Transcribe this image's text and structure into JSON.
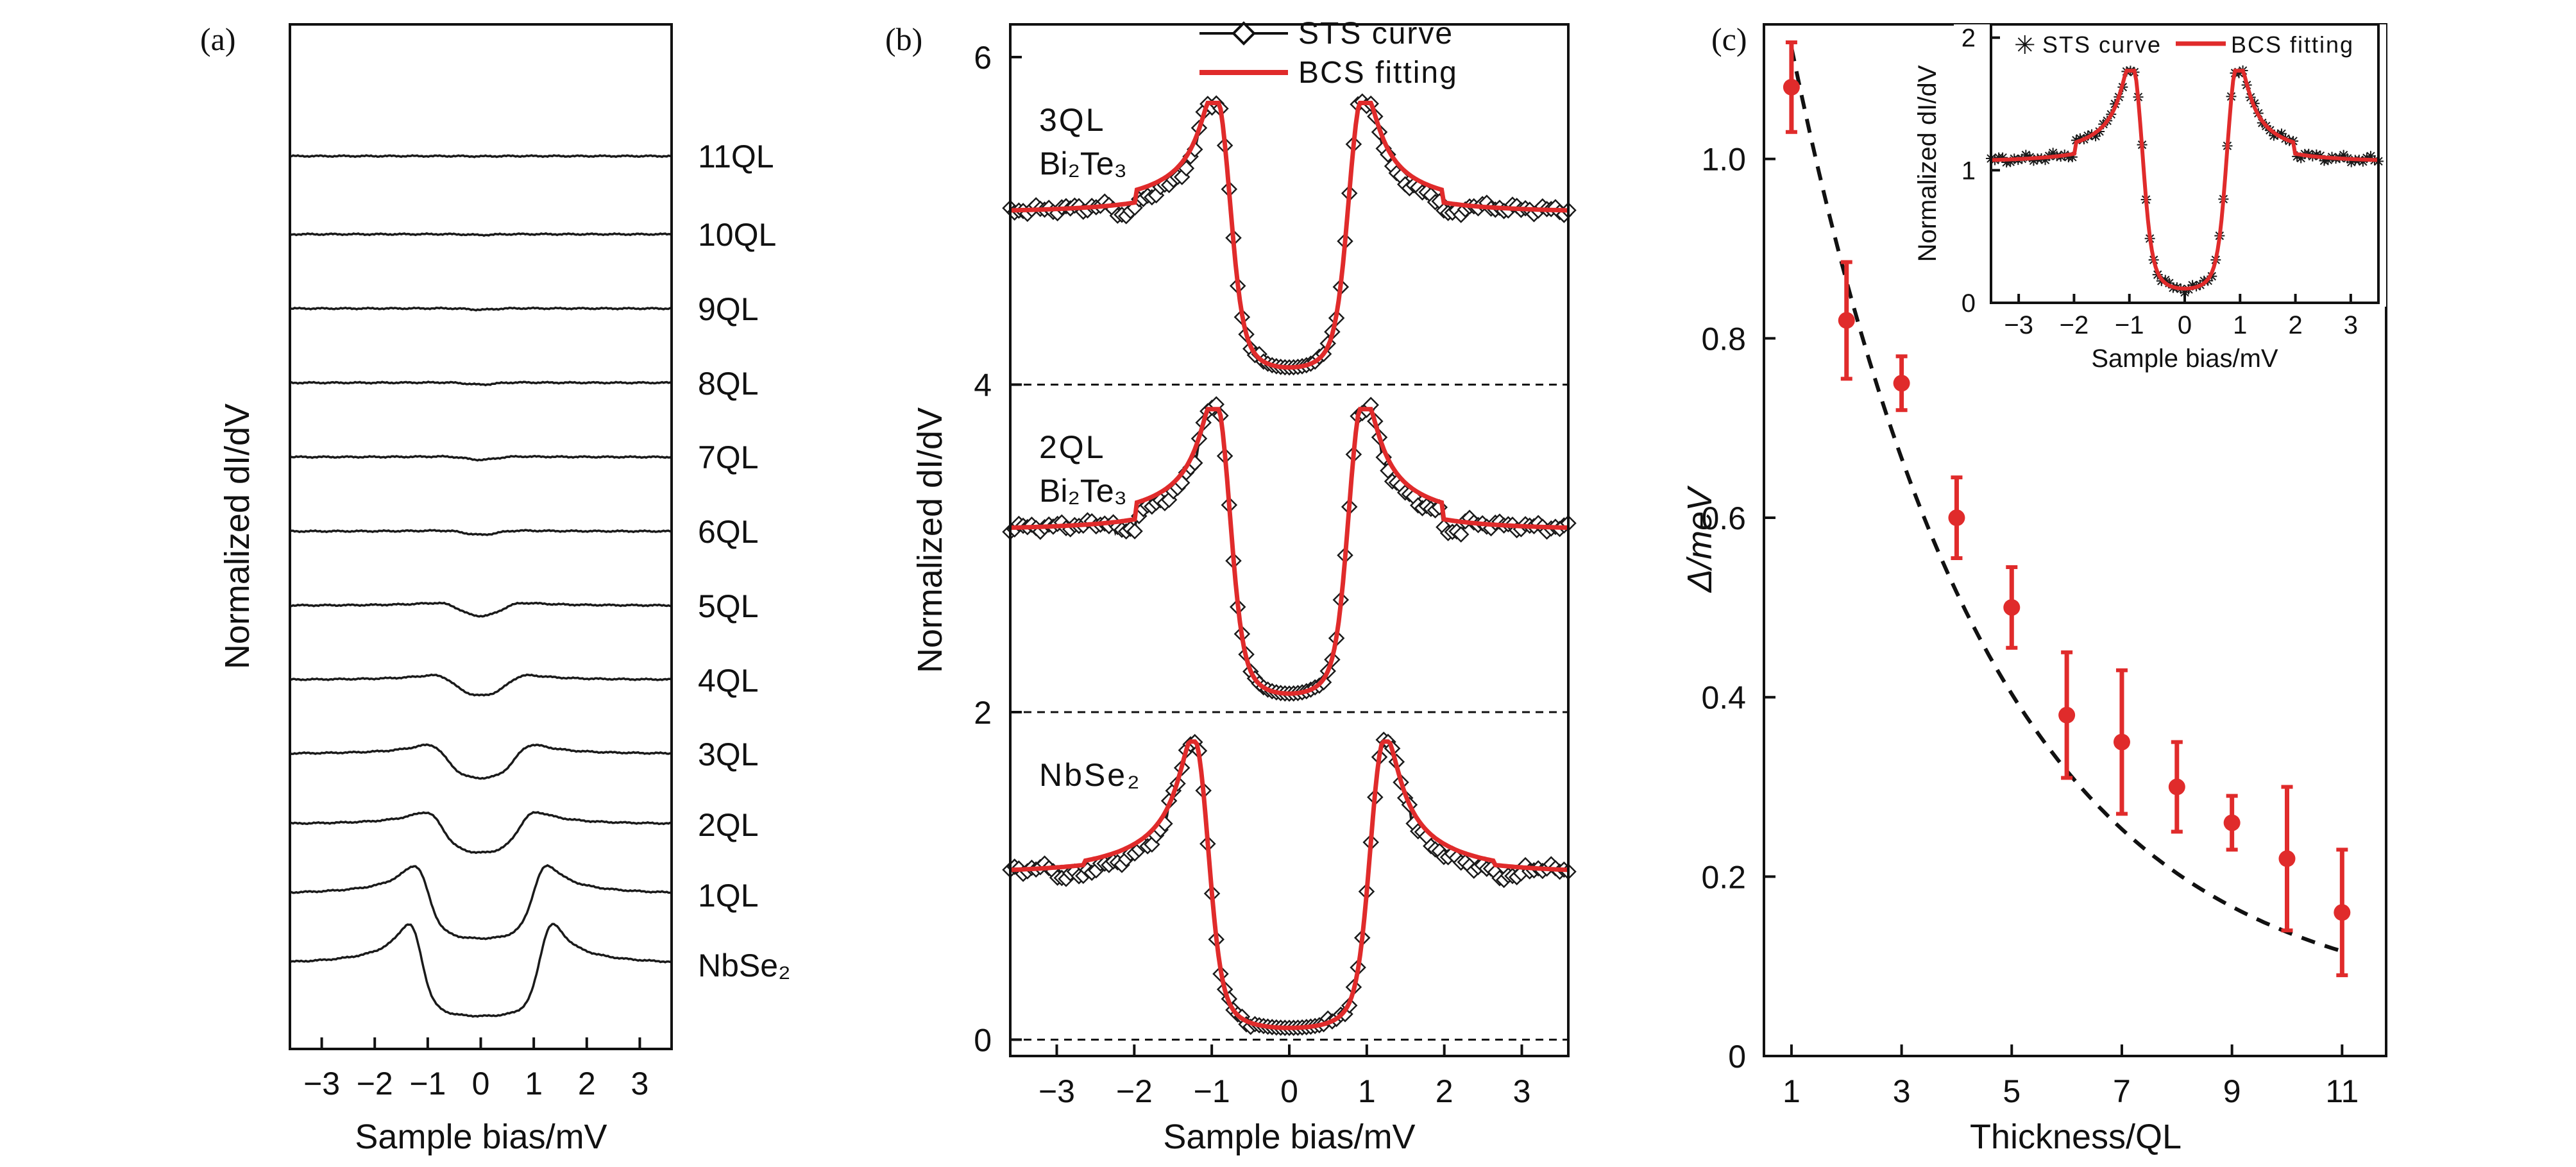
{
  "panels": {
    "a": {
      "label": "(a)"
    },
    "b": {
      "label": "(b)"
    },
    "c": {
      "label": "(c)"
    }
  },
  "colors": {
    "sts": "#1a1a1a",
    "bcs": "#e02b2b",
    "trend": "#111111",
    "errorbar": "#e02b2b"
  },
  "chart_data": [
    {
      "panel": "a",
      "type": "line",
      "xlabel": "Sample bias/mV",
      "ylabel": "Normalized dI/dV",
      "xlim": [
        -3.6,
        3.6
      ],
      "xticks": [
        -3,
        -2,
        -1,
        0,
        1,
        2,
        3
      ],
      "yticks_shown": false,
      "grid": false,
      "series": [
        {
          "name": "11QL",
          "delta": 0.16,
          "offset": 10.35
        },
        {
          "name": "10QL",
          "delta": 0.22,
          "offset": 9.35
        },
        {
          "name": "9QL",
          "delta": 0.26,
          "offset": 8.4
        },
        {
          "name": "8QL",
          "delta": 0.3,
          "offset": 7.45
        },
        {
          "name": "7QL",
          "delta": 0.35,
          "offset": 6.5
        },
        {
          "name": "6QL",
          "delta": 0.38,
          "offset": 5.55
        },
        {
          "name": "5QL",
          "delta": 0.5,
          "offset": 4.6
        },
        {
          "name": "4QL",
          "delta": 0.6,
          "offset": 3.65
        },
        {
          "name": "3QL",
          "delta": 0.75,
          "offset": 2.7
        },
        {
          "name": "2QL",
          "delta": 0.82,
          "offset": 1.8
        },
        {
          "name": "1QL",
          "delta": 1.08,
          "offset": 0.9
        },
        {
          "name": "NbSe₂",
          "delta": 1.2,
          "offset": 0.0
        }
      ]
    },
    {
      "panel": "b",
      "type": "line",
      "xlabel": "Sample bias/mV",
      "ylabel": "Normalized dI/dV",
      "xlim": [
        -3.6,
        3.6
      ],
      "ylim": [
        -0.1,
        6.2
      ],
      "xticks": [
        -3,
        -2,
        -1,
        0,
        1,
        2,
        3
      ],
      "yticks": [
        0,
        2,
        4,
        6
      ],
      "legend": "top-right",
      "legend_entries": [
        "STS curve",
        "BCS fitting"
      ],
      "dashed_baselines": [
        0,
        2,
        4
      ],
      "series": [
        {
          "name": "3QL Bi₂Te₃",
          "offset": 4.0,
          "peak_x": 0.9,
          "peak_height": 1.72,
          "plateau": 1.0
        },
        {
          "name": "2QL Bi₂Te₃",
          "offset": 2.0,
          "peak_x": 0.9,
          "peak_height": 1.85,
          "plateau": 1.03
        },
        {
          "name": "NbSe₂",
          "offset": 0.0,
          "peak_x": 1.2,
          "peak_height": 1.82,
          "plateau": 1.03
        }
      ]
    },
    {
      "panel": "c",
      "type": "scatter",
      "xlabel": "Thickness/QL",
      "ylabel": "Δ/meV",
      "xlim": [
        0.5,
        11.8
      ],
      "ylim": [
        0,
        1.15
      ],
      "xticks": [
        1,
        3,
        5,
        7,
        9,
        11
      ],
      "yticks": [
        0,
        0.2,
        0.4,
        0.6,
        0.8,
        1.0
      ],
      "x": [
        1,
        2,
        3,
        4,
        5,
        6,
        7,
        8,
        9,
        10,
        11
      ],
      "y": [
        1.08,
        0.82,
        0.75,
        0.6,
        0.5,
        0.38,
        0.35,
        0.3,
        0.26,
        0.22,
        0.16
      ],
      "yerr": [
        0.05,
        0.065,
        0.03,
        0.045,
        0.045,
        0.07,
        0.08,
        0.05,
        0.03,
        0.08,
        0.07
      ],
      "trend": "exponential decay (dashed)"
    },
    {
      "panel": "c-inset",
      "type": "line",
      "xlabel": "Sample bias/mV",
      "ylabel": "Normalized dI/dV",
      "xlim": [
        -3.5,
        3.5
      ],
      "ylim": [
        0,
        2.1
      ],
      "xticks": [
        -3,
        -2,
        -1,
        0,
        1,
        2,
        3
      ],
      "yticks": [
        0,
        1,
        2
      ],
      "legend": "top",
      "legend_entries": [
        "STS curve",
        "BCS fitting"
      ],
      "peak_x": 0.9,
      "peak_height": 1.75,
      "plateau": 1.0
    }
  ]
}
